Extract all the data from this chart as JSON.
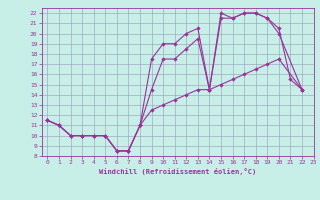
{
  "xlabel": "Windchill (Refroidissement éolien,°C)",
  "background_color": "#c8eee8",
  "grid_color": "#9999bb",
  "line_color": "#993399",
  "xlim": [
    -0.5,
    23
  ],
  "ylim": [
    8,
    22.5
  ],
  "xticks": [
    0,
    1,
    2,
    3,
    4,
    5,
    6,
    7,
    8,
    9,
    10,
    11,
    12,
    13,
    14,
    15,
    16,
    17,
    18,
    19,
    20,
    21,
    22,
    23
  ],
  "yticks": [
    8,
    9,
    10,
    11,
    12,
    13,
    14,
    15,
    16,
    17,
    18,
    19,
    20,
    21,
    22
  ],
  "line1_x": [
    0,
    1,
    2,
    3,
    4,
    5,
    6,
    7,
    8,
    9,
    10,
    11,
    12,
    13,
    14,
    15,
    16,
    17,
    18,
    19,
    20,
    21,
    22
  ],
  "line1_y": [
    11.5,
    11.0,
    10.0,
    10.0,
    10.0,
    10.0,
    8.5,
    8.5,
    11.0,
    17.5,
    19.0,
    19.0,
    20.0,
    20.5,
    14.5,
    22.0,
    21.5,
    22.0,
    22.0,
    21.5,
    20.5,
    15.5,
    14.5
  ],
  "line2_x": [
    0,
    1,
    2,
    3,
    4,
    5,
    6,
    7,
    8,
    9,
    10,
    11,
    12,
    13,
    14,
    15,
    16,
    17,
    18,
    19,
    20,
    22
  ],
  "line2_y": [
    11.5,
    11.0,
    10.0,
    10.0,
    10.0,
    10.0,
    8.5,
    8.5,
    11.0,
    14.5,
    17.5,
    17.5,
    18.5,
    19.5,
    14.5,
    21.5,
    21.5,
    22.0,
    22.0,
    21.5,
    20.0,
    14.5
  ],
  "line3_x": [
    0,
    1,
    2,
    3,
    4,
    5,
    6,
    7,
    8,
    9,
    10,
    11,
    12,
    13,
    14,
    15,
    16,
    17,
    18,
    19,
    20,
    22
  ],
  "line3_y": [
    11.5,
    11.0,
    10.0,
    10.0,
    10.0,
    10.0,
    8.5,
    8.5,
    11.0,
    12.5,
    13.0,
    13.5,
    14.0,
    14.5,
    14.5,
    15.0,
    15.5,
    16.0,
    16.5,
    17.0,
    17.5,
    14.5
  ]
}
